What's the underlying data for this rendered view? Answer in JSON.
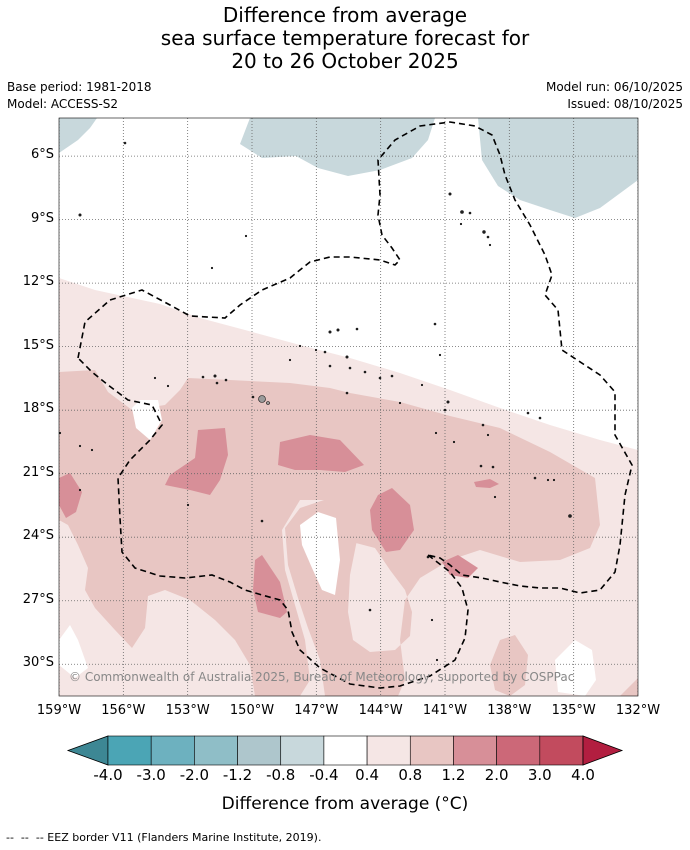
{
  "title": {
    "line1": "Difference from average",
    "line2": "sea surface temperature forecast for",
    "line3": "20 to 26 October 2025"
  },
  "meta": {
    "base_period": "Base period: 1981-2018",
    "model": "Model: ACCESS-S2",
    "model_run": "Model run: 06/10/2025",
    "issued": "Issued: 08/10/2025"
  },
  "map": {
    "lon_range": [
      -159,
      -132
    ],
    "lat_range": [
      -31.5,
      -4.2
    ],
    "lat_labels": [
      "6°S",
      "9°S",
      "12°S",
      "15°S",
      "18°S",
      "21°S",
      "24°S",
      "27°S",
      "30°S"
    ],
    "lon_labels": [
      "159°W",
      "156°W",
      "153°W",
      "150°W",
      "147°W",
      "144°W",
      "141°W",
      "138°W",
      "135°W",
      "132°W"
    ],
    "copyright": "© Commonwealth of Australia 2025, Bureau of Meteorology, supported by COSPPac"
  },
  "colorbar": {
    "ticks": [
      "-4.0",
      "-3.0",
      "-2.0",
      "-1.2",
      "-0.8",
      "-0.4",
      "0.4",
      "0.8",
      "1.2",
      "2.0",
      "3.0",
      "4.0"
    ],
    "colors": [
      "#3d8794",
      "#4ba5b5",
      "#6db1bf",
      "#8fbec7",
      "#aec6cc",
      "#c8d8dc",
      "#ffffff",
      "#f5e6e5",
      "#e8c6c3",
      "#d78f98",
      "#cc6878",
      "#c24b5e",
      "#b21e40"
    ],
    "label": "Difference from average (°C)"
  },
  "footer": {
    "legend": "-- EEZ border V11 (Flanders Marine Institute, 2019)."
  }
}
